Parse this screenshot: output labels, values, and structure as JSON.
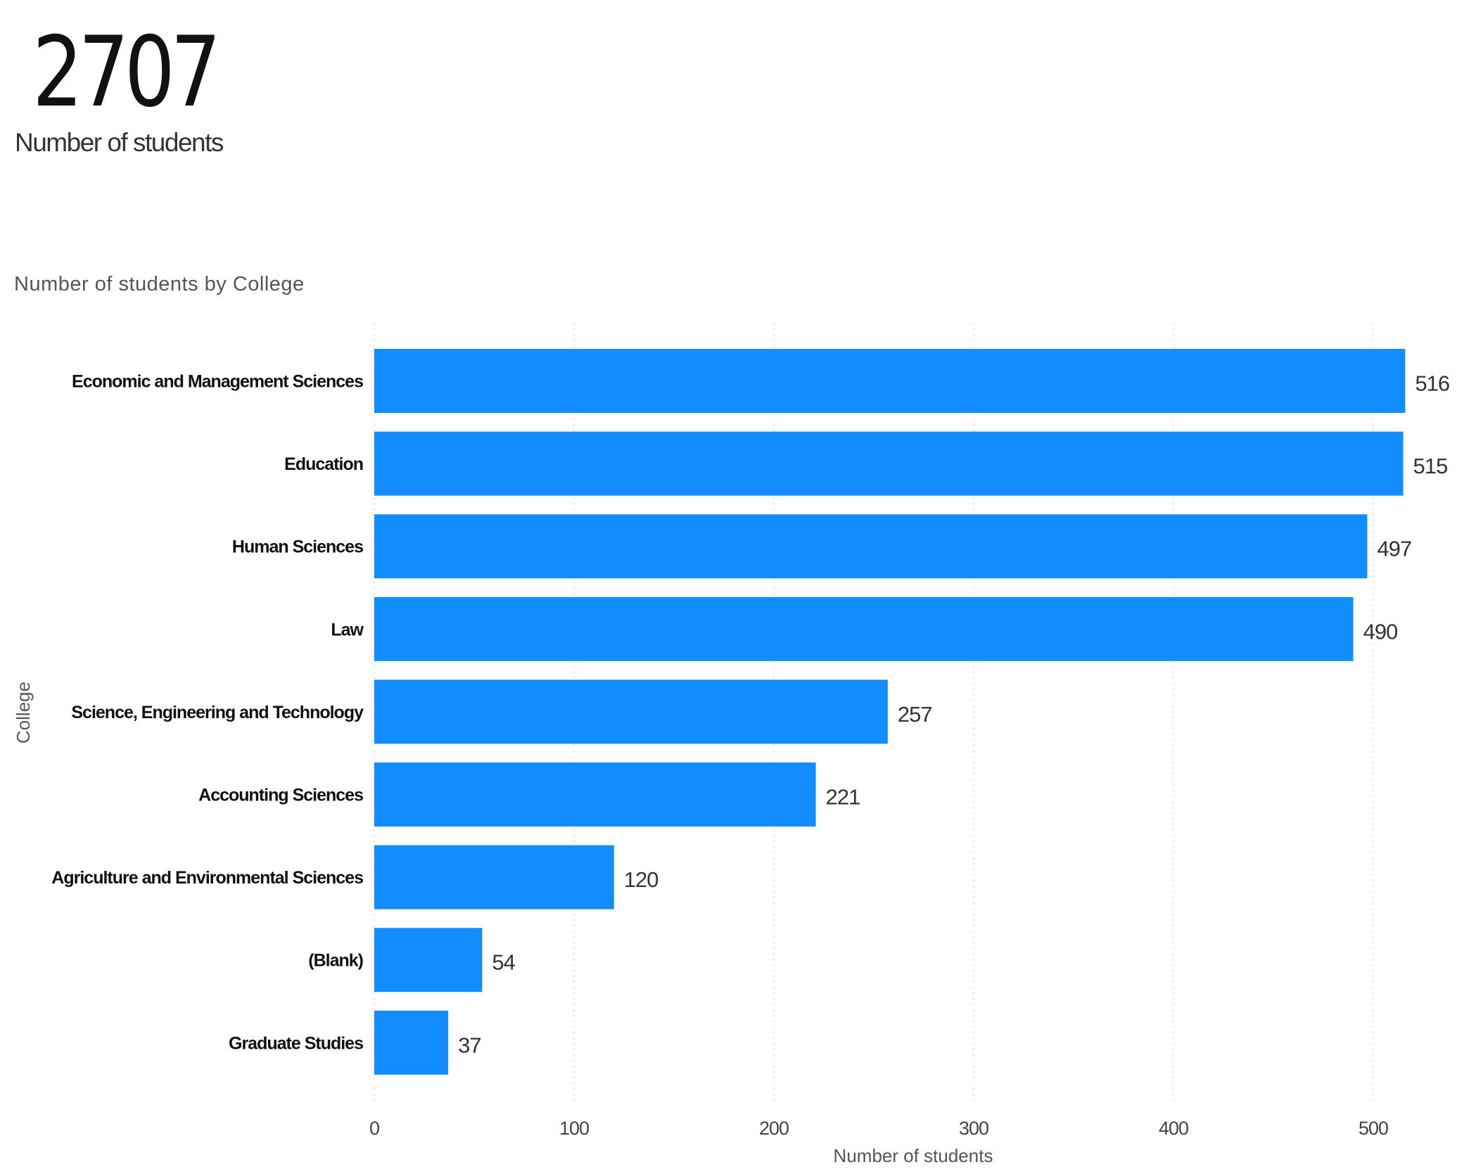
{
  "kpi": {
    "value": "2707",
    "label": "Number of students"
  },
  "chart_data": {
    "type": "bar",
    "orientation": "horizontal",
    "title": "Number of students by College",
    "xlabel": "Number of students",
    "ylabel": "College",
    "categories": [
      "Economic and Management Sciences",
      "Education",
      "Human Sciences",
      "Law",
      "Science, Engineering and Technology",
      "Accounting Sciences",
      "Agriculture and Environmental Sciences",
      "(Blank)",
      "Graduate Studies"
    ],
    "values": [
      516,
      515,
      497,
      490,
      257,
      221,
      120,
      54,
      37
    ],
    "xlim": [
      0,
      520
    ],
    "xticks": [
      "0",
      "100",
      "200",
      "300",
      "400",
      "500"
    ],
    "grid": "vertical dotted",
    "data_labels": true,
    "bar_color": "#118DFF"
  }
}
